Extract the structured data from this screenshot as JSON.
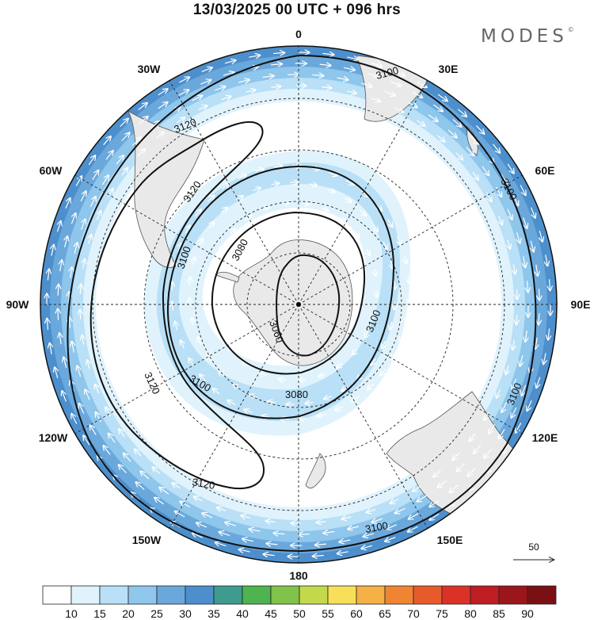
{
  "title": "13/03/2025  00 UTC  + 096 hrs",
  "logo": {
    "text": "MODES",
    "mark": "©"
  },
  "map": {
    "projection": "polar-stereographic-south",
    "longitude_labels": [
      "0",
      "30E",
      "60E",
      "90E",
      "120E",
      "150E",
      "180",
      "150W",
      "120W",
      "90W",
      "60W",
      "30W"
    ],
    "contour_labels": [
      "3100",
      "3100",
      "3100",
      "3100",
      "3100",
      "3100",
      "3100",
      "3120",
      "3120",
      "3120",
      "3120",
      "3080",
      "3080",
      "3060"
    ],
    "vector_reference": {
      "label": "50"
    },
    "colors": {
      "land": "#e9e9e9",
      "wind_10_15": "#e0f3fc",
      "wind_15_20": "#b9e0f6",
      "wind_20_25": "#8ec6ec",
      "wind_25_30": "#6aa8dc",
      "wind_30_35": "#4d8fcc"
    }
  },
  "colorbar": {
    "labels": [
      "10",
      "15",
      "20",
      "25",
      "30",
      "35",
      "40",
      "45",
      "50",
      "55",
      "60",
      "65",
      "70",
      "75",
      "80",
      "85",
      "90"
    ],
    "colors": [
      "#ffffff",
      "#e0f3fc",
      "#b9e0f6",
      "#8ec6ec",
      "#6aa8dc",
      "#4d8fcc",
      "#3e9b8f",
      "#4fb34f",
      "#80c24a",
      "#c3d94b",
      "#f7df5a",
      "#f5b046",
      "#ef8533",
      "#e75a2c",
      "#db3228",
      "#bf1d24",
      "#9b161b",
      "#7a1014"
    ]
  }
}
